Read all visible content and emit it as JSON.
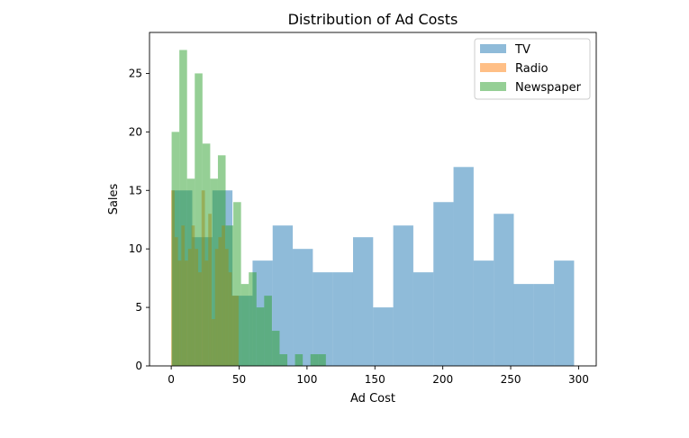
{
  "chart_data": {
    "type": "histogram",
    "title": "Distribution of Ad Costs",
    "xlabel": "Ad Cost",
    "ylabel": "Sales",
    "xlim": [
      -16,
      313
    ],
    "ylim": [
      0,
      28.5
    ],
    "xticks": [
      0,
      50,
      100,
      150,
      200,
      250,
      300
    ],
    "yticks": [
      0,
      5,
      10,
      15,
      20,
      25
    ],
    "legend_position": "top-right",
    "grid": false,
    "series": [
      {
        "name": "TV",
        "color": "#1f77b4",
        "bin_start": 0.7,
        "bin_width": 14.8,
        "counts": [
          15,
          11,
          15,
          6,
          9,
          12,
          10,
          8,
          8,
          11,
          5,
          12,
          8,
          14,
          17,
          9,
          13,
          7,
          7,
          9
        ]
      },
      {
        "name": "Radio",
        "color": "#ff7f0e",
        "bin_start": 0.0,
        "bin_width": 2.48,
        "counts": [
          15,
          11,
          9,
          12,
          9,
          10,
          12,
          10,
          8,
          15,
          9,
          13,
          4,
          10,
          11,
          12,
          10,
          8,
          6,
          6
        ]
      },
      {
        "name": "Newspaper",
        "color": "#2ca02c",
        "bin_start": 0.3,
        "bin_width": 5.68,
        "counts": [
          20,
          27,
          16,
          25,
          19,
          16,
          18,
          12,
          14,
          7,
          8,
          5,
          6,
          3,
          1,
          0,
          1,
          0,
          1,
          1
        ]
      }
    ]
  }
}
